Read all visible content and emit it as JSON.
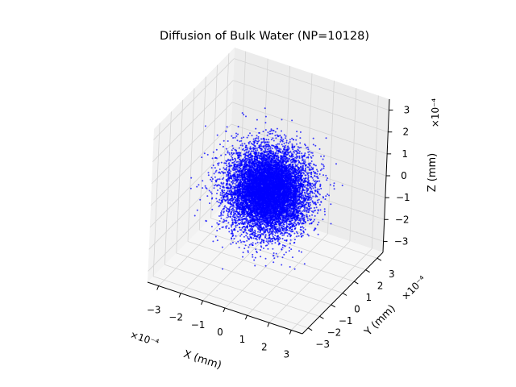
{
  "chart_data": {
    "type": "scatter3d",
    "title": "Diffusion of Bulk Water (NP=10128)",
    "n_points": 10128,
    "marker_color": "#0000ff",
    "xlabel": "X (mm)",
    "ylabel": "Y (mm)",
    "zlabel": "Z (mm)",
    "x_offset_label": "×10⁻⁴",
    "y_offset_label": "×10⁻⁴",
    "z_offset_label": "×10⁻⁴",
    "xlim": [
      -3.5,
      3.5
    ],
    "ylim": [
      -3.5,
      3.5
    ],
    "zlim": [
      -3.5,
      3.5
    ],
    "xticks": [
      -3,
      -2,
      -1,
      0,
      1,
      2,
      3
    ],
    "yticks": [
      -3,
      -2,
      -1,
      0,
      1,
      2,
      3
    ],
    "zticks": [
      -3,
      -2,
      -1,
      0,
      1,
      2,
      3
    ],
    "xtick_labels": [
      "−3",
      "−2",
      "−1",
      "0",
      "1",
      "2",
      "3"
    ],
    "ytick_labels": [
      "−3",
      "−2",
      "−1",
      "0",
      "1",
      "2",
      "3"
    ],
    "ztick_labels": [
      "−3",
      "−2",
      "−1",
      "0",
      "1",
      "2",
      "3"
    ],
    "grid": true,
    "view": {
      "elev": 30,
      "azim": -60
    }
  }
}
